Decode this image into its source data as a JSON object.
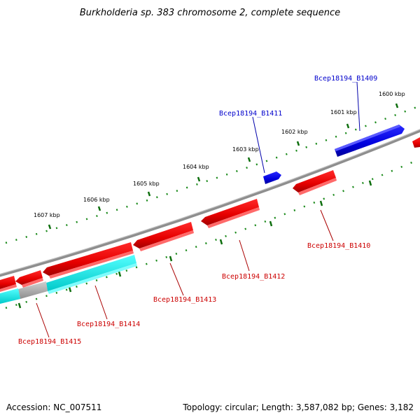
{
  "title": "Burkholderia sp. 383 chromosome 2, complete sequence",
  "footer": {
    "accession": "Accession: NC_007511",
    "summary": "Topology: circular; Length: 3,587,082 bp; Genes: 3,182"
  },
  "ticks": [
    {
      "label": "1600 kbp"
    },
    {
      "label": "1601 kbp"
    },
    {
      "label": "1602 kbp"
    },
    {
      "label": "1603 kbp"
    },
    {
      "label": "1604 kbp"
    },
    {
      "label": "1605 kbp"
    },
    {
      "label": "1606 kbp"
    },
    {
      "label": "1607 kbp"
    }
  ],
  "genes": [
    {
      "name": "Bcep18194_B1409",
      "strand": "forward",
      "color": "#0000cc"
    },
    {
      "name": "Bcep18194_B1410",
      "strand": "reverse",
      "color": "#cc0000"
    },
    {
      "name": "Bcep18194_B1411",
      "strand": "forward",
      "color": "#0000cc"
    },
    {
      "name": "Bcep18194_B1412",
      "strand": "reverse",
      "color": "#cc0000"
    },
    {
      "name": "Bcep18194_B1413",
      "strand": "reverse",
      "color": "#cc0000"
    },
    {
      "name": "Bcep18194_B1414",
      "strand": "reverse",
      "color": "#cc0000"
    },
    {
      "name": "Bcep18194_B1415",
      "strand": "reverse",
      "color": "#cc0000"
    }
  ],
  "colors": {
    "forward_gene": "#0000ee",
    "reverse_gene": "#ee0000",
    "backbone": "#888888",
    "tick_marks": "#118811",
    "cyan_feature": "#00e5e5",
    "gray_feature": "#b0b0b0"
  }
}
